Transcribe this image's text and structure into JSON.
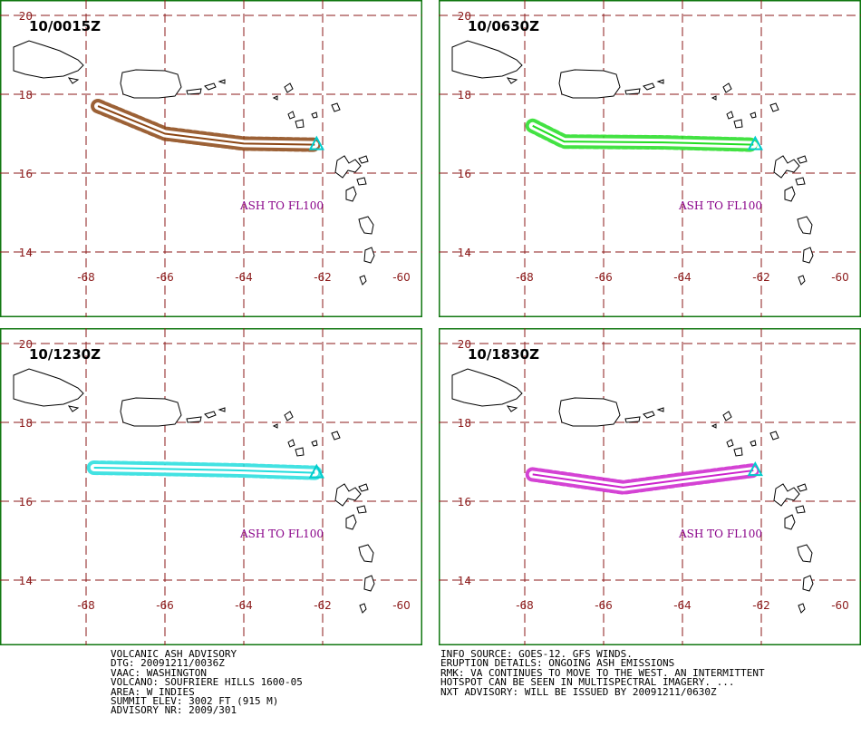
{
  "map": {
    "lon_range": [
      -68,
      -60
    ],
    "lat_range": [
      14,
      20
    ],
    "lon_ticks": [
      "-68",
      "-66",
      "-64",
      "-62",
      "-60"
    ],
    "lat_ticks": [
      "20",
      "18",
      "16",
      "14"
    ],
    "grid_color": "#8b1a1a",
    "frame_color": "#117711",
    "volcano_marker_color": "#00cccc"
  },
  "panels": [
    {
      "title": "10/0015Z",
      "label": "ASH TO FL100",
      "color": "#8b4513",
      "path": [
        [
          -67.7,
          17.7
        ],
        [
          -66.0,
          17.0
        ],
        [
          -64.0,
          16.75
        ],
        [
          -62.2,
          16.72
        ]
      ]
    },
    {
      "title": "10/0630Z",
      "label": "ASH TO FL100",
      "color": "#22dd22",
      "path": [
        [
          -67.8,
          17.2
        ],
        [
          -67.0,
          16.8
        ],
        [
          -64.5,
          16.78
        ],
        [
          -62.2,
          16.72
        ]
      ]
    },
    {
      "title": "10/1230Z",
      "label": "ASH TO FL100",
      "color": "#22dddd",
      "path": [
        [
          -67.8,
          16.85
        ],
        [
          -66.0,
          16.82
        ],
        [
          -64.0,
          16.78
        ],
        [
          -62.2,
          16.72
        ]
      ]
    },
    {
      "title": "10/1830Z",
      "label": "ASH TO FL100",
      "color": "#cc22cc",
      "path": [
        [
          -67.8,
          16.68
        ],
        [
          -65.5,
          16.35
        ],
        [
          -64.0,
          16.55
        ],
        [
          -62.2,
          16.78
        ]
      ]
    }
  ],
  "advisory_left": [
    "VOLCANIC ASH ADVISORY",
    "DTG: 20091211/0036Z",
    "VAAC: WASHINGTON",
    "VOLCANO: SOUFRIERE HILLS 1600-05",
    "AREA: W_INDIES",
    "SUMMIT ELEV: 3002 FT (915 M)",
    "ADVISORY NR: 2009/301"
  ],
  "advisory_right": [
    "INFO SOURCE: GOES-12. GFS WINDS.",
    "ERUPTION DETAILS: ONGOING ASH EMISSIONS",
    "RMK: VA CONTINUES TO MOVE TO THE WEST. AN INTERMITTENT",
    "HOTSPOT CAN BE SEEN IN MULTISPECTRAL IMAGERY. ...",
    "NXT ADVISORY: WILL BE ISSUED BY 20091211/0630Z"
  ]
}
